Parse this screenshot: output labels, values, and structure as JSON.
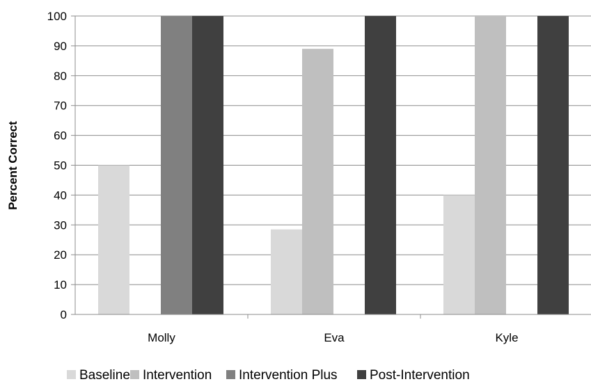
{
  "chart_data": {
    "type": "bar",
    "title": "",
    "xlabel": "",
    "ylabel": "Percent Correct",
    "ylim": [
      0,
      100
    ],
    "yticks": [
      0,
      10,
      20,
      30,
      40,
      50,
      60,
      70,
      80,
      90,
      100
    ],
    "categories": [
      "Molly",
      "Eva",
      "Kyle"
    ],
    "series": [
      {
        "name": "Baseline",
        "color": "#d9d9d9",
        "values": [
          50,
          28.5,
          40
        ]
      },
      {
        "name": "Intervention",
        "color": "#bfbfbf",
        "values": [
          0,
          89,
          100
        ]
      },
      {
        "name": "Intervention Plus",
        "color": "#808080",
        "values": [
          100,
          0,
          0
        ]
      },
      {
        "name": "Post-Intervention",
        "color": "#404040",
        "values": [
          100,
          100,
          100
        ]
      }
    ],
    "grid": true,
    "legend_position": "bottom"
  }
}
